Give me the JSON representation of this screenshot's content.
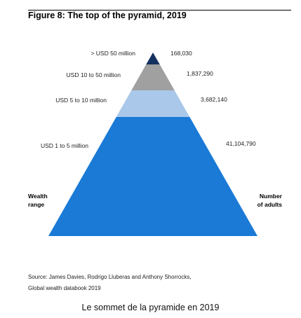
{
  "figure": {
    "title": "Figure 8: The top of the pyramid, 2019",
    "source_line1": "Source: James Davies, Rodrigo Lluberas and Anthony Shorrocks,",
    "source_line2": "Global wealth databook 2019"
  },
  "caption": "Le sommet de la pyramide en 2019",
  "axis": {
    "left_line1": "Wealth",
    "left_line2": "range",
    "right_line1": "Number",
    "right_line2": "of adults"
  },
  "colors": {
    "tier1": "#1a7ad6",
    "tier2": "#a9c8ea",
    "tier3": "#a0a0a0",
    "tier4": "#14305e"
  },
  "chart_data": {
    "type": "pyramid",
    "title": "Figure 8: The top of the pyramid, 2019",
    "tiers": [
      {
        "range": "> USD 50 million",
        "adults": 168030,
        "adults_label": "168,030"
      },
      {
        "range": "USD  10 to 50 million",
        "adults": 1837290,
        "adults_label": "1,837,290"
      },
      {
        "range": "USD 5 to 10 million",
        "adults": 3682140,
        "adults_label": "3,682,140"
      },
      {
        "range": "USD 1 to 5 million",
        "adults": 41104790,
        "adults_label": "41,104,790"
      }
    ],
    "left_axis_label": "Wealth range",
    "right_axis_label": "Number of adults"
  }
}
